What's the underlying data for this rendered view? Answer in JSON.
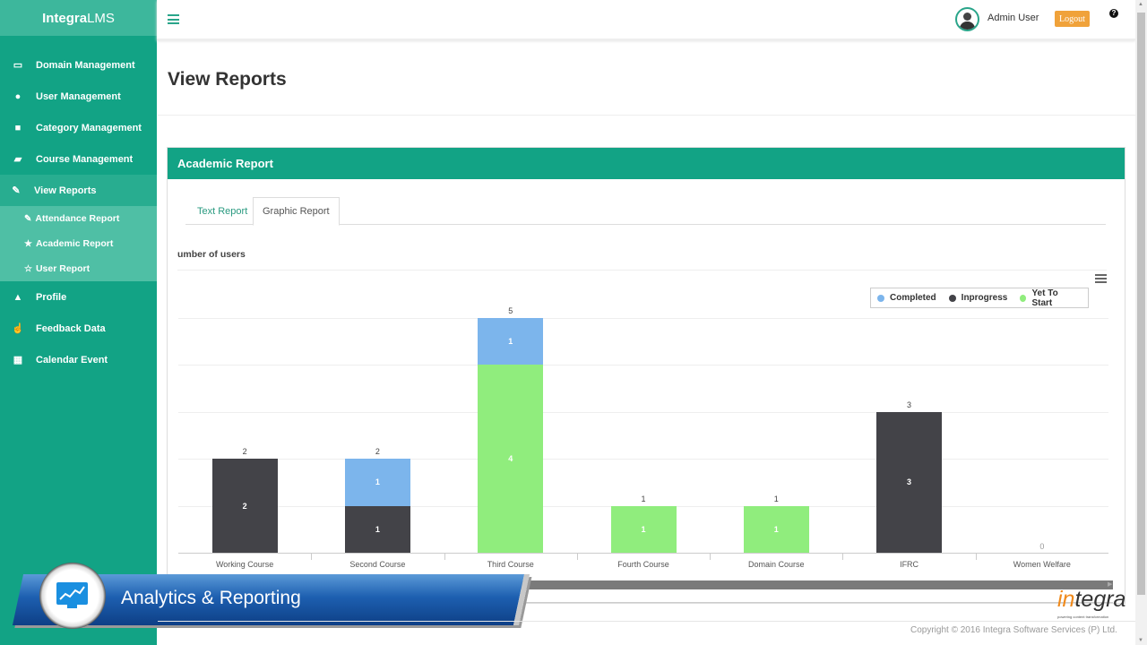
{
  "app": {
    "brand_bold": "Integra",
    "brand_light": "LMS"
  },
  "sidebar": {
    "items": [
      {
        "label": "Domain Management",
        "icon": "laptop-icon"
      },
      {
        "label": "User Management",
        "icon": "users-icon"
      },
      {
        "label": "Category Management",
        "icon": "briefcase-icon"
      },
      {
        "label": "Course Management",
        "icon": "book-icon"
      },
      {
        "label": "View Reports",
        "icon": "edit-icon",
        "active": true
      },
      {
        "label": "Profile",
        "icon": "user-icon"
      },
      {
        "label": "Feedback Data",
        "icon": "thumbs-up-icon"
      },
      {
        "label": "Calendar Event",
        "icon": "calendar-icon"
      }
    ],
    "subitems": [
      {
        "label": "Attendance Report",
        "icon": "edit-icon"
      },
      {
        "label": "Academic Report",
        "icon": "star-icon"
      },
      {
        "label": "User Report",
        "icon": "star-outline-icon"
      }
    ]
  },
  "header": {
    "user_name": "Admin User",
    "logout_label": "Logout",
    "help": "?"
  },
  "page": {
    "title": "View Reports"
  },
  "panel": {
    "title": "Academic Report",
    "tabs": [
      {
        "label": "Text Report"
      },
      {
        "label": "Graphic Report",
        "active": true
      }
    ]
  },
  "colors": {
    "primary": "#12a385",
    "completed": "#7cb5ec",
    "inprogress": "#434348",
    "yet_to_start": "#90ed7d",
    "logout": "#f0a23a"
  },
  "chart_data": {
    "type": "bar",
    "stacked": true,
    "title": "umber of users",
    "categories": [
      "Working Course",
      "Second Course",
      "Third Course",
      "Fourth Course",
      "Domain Course",
      "IFRC",
      "Women Welfare"
    ],
    "series": [
      {
        "name": "Completed",
        "color": "#7cb5ec",
        "values": [
          0,
          1,
          1,
          0,
          0,
          0,
          0
        ]
      },
      {
        "name": "Inprogress",
        "color": "#434348",
        "values": [
          2,
          1,
          0,
          0,
          0,
          3,
          0
        ]
      },
      {
        "name": "Yet To Start",
        "color": "#90ed7d",
        "values": [
          0,
          0,
          4,
          1,
          1,
          0,
          0
        ]
      }
    ],
    "totals": [
      2,
      2,
      5,
      1,
      1,
      3,
      0
    ],
    "ylim": [
      0,
      5
    ],
    "grid": true,
    "legend_position": "top-right",
    "xlabel": "",
    "ylabel": ""
  },
  "overlay": {
    "banner_text": "Analytics & Reporting"
  },
  "footer": {
    "logo_in": "in",
    "logo_rest": "tegra",
    "logo_tagline": "powering content transformation",
    "copyright": "Copyright © 2016 Integra Software Services (P) Ltd."
  }
}
